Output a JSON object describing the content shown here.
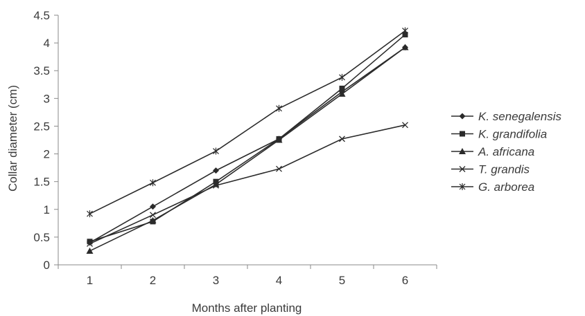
{
  "chart_data": {
    "type": "line",
    "title": "",
    "xlabel": "Months after planting",
    "ylabel": "Collar diameter (cm)",
    "x": [
      1,
      2,
      3,
      4,
      5,
      6
    ],
    "xlim": [
      0.5,
      6.5
    ],
    "ylim": [
      0,
      4.5
    ],
    "y_ticks": [
      "0",
      "0.5",
      "1",
      "1.5",
      "2",
      "2.5",
      "3",
      "3.5",
      "4",
      "4.5"
    ],
    "x_ticks": [
      "1",
      "2",
      "3",
      "4",
      "5",
      "6"
    ],
    "grid": false,
    "legend_position": "right",
    "line_color": "#2b2b2b",
    "series": [
      {
        "name": "K. senegalensis",
        "marker": "diamond",
        "values": [
          0.4,
          1.05,
          1.7,
          2.27,
          3.12,
          3.92
        ]
      },
      {
        "name": "K. grandifolia",
        "marker": "square",
        "values": [
          0.42,
          0.78,
          1.5,
          2.27,
          3.18,
          4.15
        ]
      },
      {
        "name": "A. africana",
        "marker": "triangle",
        "values": [
          0.25,
          0.8,
          1.45,
          2.25,
          3.08,
          3.92
        ]
      },
      {
        "name": "T. grandis",
        "marker": "x",
        "values": [
          0.38,
          0.9,
          1.43,
          1.73,
          2.27,
          2.52
        ]
      },
      {
        "name": "G. arborea",
        "marker": "asterisk",
        "values": [
          0.92,
          1.48,
          2.05,
          2.82,
          3.38,
          4.22
        ]
      }
    ]
  }
}
